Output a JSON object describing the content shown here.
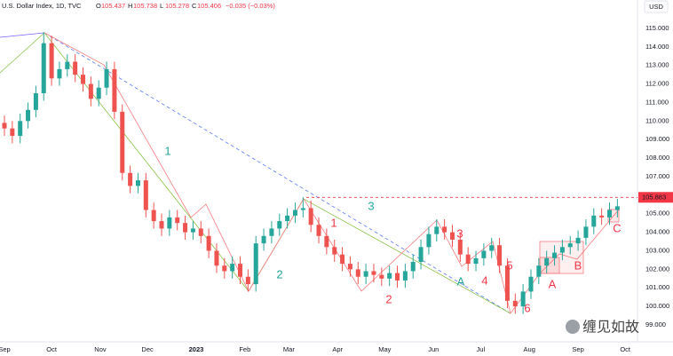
{
  "header": {
    "title": "U.S. Dollar Index, 1D, TVC",
    "ohlc": [
      {
        "label": "O",
        "value": 105.437
      },
      {
        "label": "H",
        "value": 105.738
      },
      {
        "label": "L",
        "value": 105.278
      },
      {
        "label": "C",
        "value": 105.406
      }
    ],
    "change": "−0.035 (−0.03%)",
    "currency": "USD"
  },
  "watermark": "缠见如故",
  "chart_data": {
    "type": "candlestick",
    "up_color": "#26a69a",
    "down_color": "#ef5350",
    "open": [
      109.9,
      109.6,
      109.2,
      110.0,
      110.6,
      111.5,
      114.2,
      112.3,
      112.8,
      113.2,
      112.5,
      112.0,
      111.2,
      111.8,
      112.8,
      110.5,
      107.2,
      106.5,
      106.8,
      105.2,
      104.6,
      104.2,
      104.8,
      104.5,
      104.0,
      104.2,
      103.8,
      103.0,
      102.2,
      101.9,
      102.3,
      101.6,
      101.2,
      103.4,
      103.8,
      104.2,
      104.6,
      104.9,
      105.2,
      105.3,
      104.4,
      103.8,
      103.2,
      102.8,
      102.3,
      102.0,
      101.6,
      101.9,
      101.7,
      101.5,
      101.8,
      101.4,
      101.9,
      102.4,
      103.2,
      103.9,
      104.3,
      104.0,
      103.6,
      102.8,
      102.3,
      102.6,
      103.0,
      103.3,
      102.2,
      100.3,
      100.0,
      100.8,
      101.6,
      102.2,
      102.6,
      102.9,
      103.2,
      103.4,
      103.7,
      104.3,
      104.9,
      104.8,
      105.2
    ],
    "high": [
      110.3,
      110.0,
      110.4,
      111.0,
      111.9,
      114.8,
      114.6,
      113.2,
      113.6,
      113.6,
      112.9,
      112.4,
      112.2,
      113.2,
      113.2,
      110.9,
      107.6,
      107.2,
      107.2,
      105.6,
      105.0,
      105.2,
      105.2,
      104.9,
      104.6,
      104.6,
      104.2,
      103.4,
      102.6,
      102.7,
      102.7,
      102.0,
      103.8,
      104.2,
      104.6,
      105.0,
      105.3,
      105.6,
      105.9,
      105.7,
      104.8,
      104.2,
      103.6,
      103.2,
      102.7,
      102.4,
      102.3,
      102.3,
      102.1,
      102.2,
      102.2,
      102.3,
      102.8,
      103.6,
      104.3,
      104.7,
      104.7,
      104.4,
      104.0,
      103.2,
      103.0,
      103.4,
      103.7,
      103.7,
      102.6,
      100.7,
      101.2,
      102.0,
      102.6,
      103.0,
      103.3,
      103.6,
      103.8,
      104.1,
      104.7,
      105.3,
      105.3,
      105.6,
      105.8
    ],
    "low": [
      109.2,
      108.8,
      108.8,
      109.6,
      110.2,
      111.1,
      111.9,
      111.9,
      112.4,
      112.1,
      111.6,
      110.8,
      110.8,
      111.4,
      110.1,
      106.8,
      106.1,
      106.1,
      104.8,
      104.2,
      103.8,
      103.8,
      104.1,
      103.6,
      103.6,
      103.4,
      102.6,
      101.8,
      101.5,
      101.5,
      101.2,
      100.8,
      100.8,
      103.0,
      103.4,
      103.8,
      104.2,
      104.5,
      104.8,
      104.0,
      103.4,
      102.8,
      102.4,
      101.9,
      101.6,
      101.2,
      101.2,
      101.3,
      101.1,
      101.1,
      101.0,
      101.0,
      101.5,
      102.0,
      102.8,
      103.5,
      103.6,
      103.2,
      102.4,
      101.9,
      101.9,
      102.2,
      102.6,
      101.8,
      99.9,
      99.6,
      99.6,
      100.4,
      101.2,
      101.8,
      102.2,
      102.5,
      102.8,
      103.0,
      103.3,
      103.9,
      104.4,
      104.4,
      104.8
    ],
    "close": [
      109.6,
      109.2,
      110.0,
      110.6,
      111.5,
      114.2,
      112.3,
      112.8,
      113.2,
      112.5,
      112.0,
      111.2,
      111.8,
      112.8,
      110.5,
      107.2,
      106.5,
      106.8,
      105.2,
      104.6,
      104.2,
      104.8,
      104.5,
      104.0,
      104.2,
      103.8,
      103.0,
      102.2,
      101.9,
      102.3,
      101.6,
      101.2,
      103.4,
      103.8,
      104.2,
      104.6,
      104.9,
      105.2,
      105.3,
      104.4,
      103.8,
      103.2,
      102.8,
      102.3,
      102.0,
      101.6,
      101.9,
      101.7,
      101.5,
      101.8,
      101.4,
      101.9,
      102.4,
      103.2,
      103.9,
      104.3,
      104.0,
      103.6,
      102.8,
      102.3,
      102.6,
      103.0,
      103.3,
      102.2,
      100.3,
      100.0,
      100.8,
      101.6,
      102.2,
      102.6,
      102.9,
      103.2,
      103.4,
      103.7,
      104.3,
      104.9,
      104.8,
      105.2,
      105.4
    ],
    "xlim": [
      -0.565,
      80.56
    ],
    "xticks": [
      {
        "value": 0,
        "label": "Sep"
      },
      {
        "value": 6,
        "label": "Oct"
      },
      {
        "value": 12.2,
        "label": "Nov"
      },
      {
        "value": 18.2,
        "label": "Dec"
      },
      {
        "value": 24.4,
        "label": "2023"
      },
      {
        "value": 30.6,
        "label": "Feb"
      },
      {
        "value": 36.2,
        "label": "Mar"
      },
      {
        "value": 42.4,
        "label": "Apr"
      },
      {
        "value": 48.4,
        "label": "May"
      },
      {
        "value": 54.6,
        "label": "Jun"
      },
      {
        "value": 60.6,
        "label": "Jul"
      },
      {
        "value": 66.8,
        "label": "Aug"
      },
      {
        "value": 73,
        "label": "Sep"
      },
      {
        "value": 79,
        "label": "Oct"
      }
    ],
    "ylim": [
      98.09,
      116.53
    ],
    "yticks": [
      {
        "value": 99,
        "label": "99.000"
      },
      {
        "value": 100,
        "label": "100.000"
      },
      {
        "value": 101,
        "label": "101.000"
      },
      {
        "value": 102,
        "label": "102.000"
      },
      {
        "value": 103,
        "label": "103.000"
      },
      {
        "value": 104,
        "label": "104.000"
      },
      {
        "value": 105,
        "label": "105.000"
      },
      {
        "value": 106,
        "label": "106.000"
      },
      {
        "value": 107,
        "label": "107.000"
      },
      {
        "value": 108,
        "label": "108.000"
      },
      {
        "value": 109,
        "label": "109.000"
      },
      {
        "value": 110,
        "label": "110.000"
      },
      {
        "value": 111,
        "label": "111.000"
      },
      {
        "value": 112,
        "label": "112.000"
      },
      {
        "value": 113,
        "label": "113.000"
      },
      {
        "value": 114,
        "label": "114.000"
      },
      {
        "value": 115,
        "label": "115.000"
      }
    ],
    "hline": {
      "value": 105.883,
      "label": "105.883",
      "color": "#f23645"
    },
    "annotations": [
      {
        "text": "1",
        "color": "#26a69a"
      },
      {
        "text": "2",
        "color": "#26a69a"
      },
      {
        "text": "3",
        "color": "#26a69a"
      },
      {
        "text": "A",
        "color": "#26a69a"
      },
      {
        "text": "1",
        "color": "#f23645"
      },
      {
        "text": "2",
        "color": "#f23645"
      },
      {
        "text": "3",
        "color": "#f23645"
      },
      {
        "text": "4",
        "color": "#f23645"
      },
      {
        "text": "5",
        "color": "#f23645"
      },
      {
        "text": "6",
        "color": "#f23645"
      },
      {
        "text": "A",
        "color": "#f23645"
      },
      {
        "text": "B",
        "color": "#f23645"
      },
      {
        "text": "C",
        "color": "#f23645"
      }
    ],
    "grid": false
  }
}
